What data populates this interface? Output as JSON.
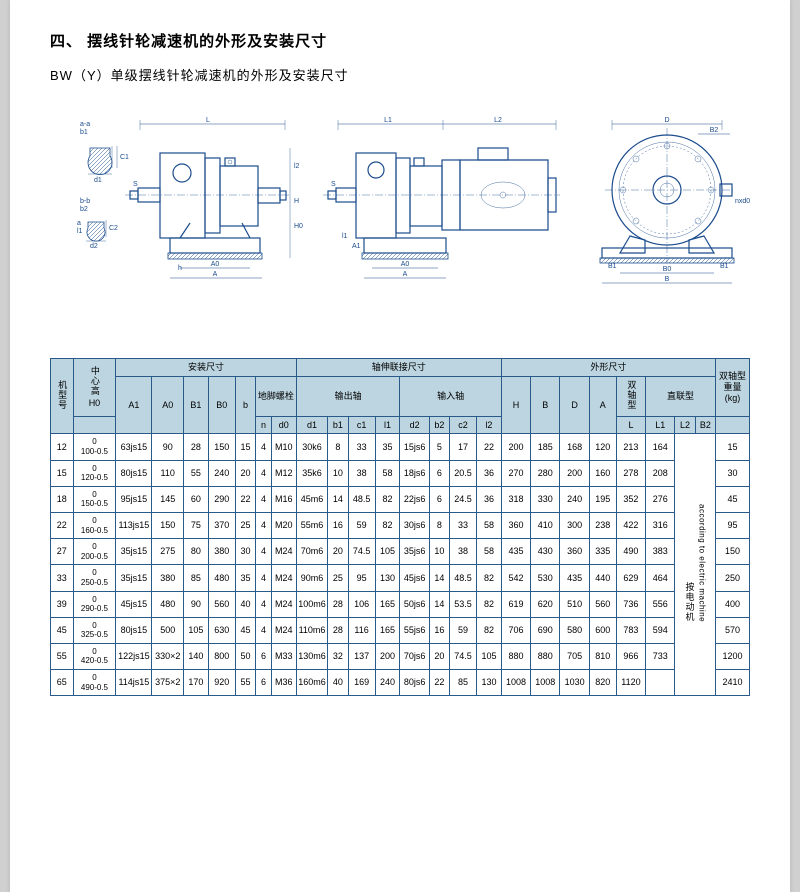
{
  "header": {
    "section_title": "四、  摆线针轮减速机的外形及安装尺寸",
    "subtitle": "BW（Y）单级摆线针轮减速机的外形及安装尺寸"
  },
  "diagram": {
    "small_labels": {
      "aa": "a-a",
      "bb": "b-b",
      "b1": "b1",
      "d1": "d1",
      "C1": "C1",
      "b2": "b2",
      "d2": "d2",
      "C2": "C2",
      "a": "a",
      "s_": "S",
      "I1": "l1",
      "h": "h",
      "H0": "H0",
      "I2": "l2",
      "H": "H"
    },
    "main": {
      "L": "L",
      "A0": "A0",
      "A": "A",
      "S": "S",
      "L1": "L1",
      "L2": "L2",
      "A0_2": "A0",
      "A_2": "A",
      "A1": "A1",
      "I1": "l1",
      "D": "D",
      "B2": "B2",
      "B1": "B1",
      "B0": "B0",
      "B": "B",
      "nxd0": "nxd0"
    }
  },
  "table": {
    "groups": {
      "install": "安装尺寸",
      "shaft": "轴伸联接尺寸",
      "outline": "外形尺寸"
    },
    "headers": {
      "model": "机型号",
      "center_h": "中心高",
      "H0": "H0",
      "A1": "A1",
      "A0": "A0",
      "B1": "B1",
      "B0": "B0",
      "b": "b",
      "anchor": "地脚螺栓",
      "output": "输出轴",
      "input": "输入轴",
      "n": "n",
      "d0": "d0",
      "d1": "d1",
      "b1": "b1",
      "c1": "c1",
      "l1": "l1",
      "d2": "d2",
      "b2": "b2",
      "c2": "c2",
      "l2": "l2",
      "H": "H",
      "B": "B",
      "D": "D",
      "A": "A",
      "dual": "双轴型",
      "direct": "直联型",
      "L": "L",
      "L1": "L1",
      "L2": "L2",
      "B2": "B2",
      "weight": "双轴型重量",
      "kg": "(kg)",
      "note": "按电动机",
      "note_en": "according to electric machine"
    },
    "rows": [
      {
        "m": "12",
        "h0": "0\n100-0.5",
        "a1": "63js15",
        "a0": "90",
        "b1": "28",
        "b0": "150",
        "b": "15",
        "n": "4",
        "d0": "M10",
        "d1": "30k6",
        "b1s": "8",
        "c1": "33",
        "l1": "35",
        "d2": "15js6",
        "b2": "5",
        "c2": "17",
        "l2": "22",
        "H": "200",
        "B": "185",
        "D": "168",
        "A": "120",
        "L": "213",
        "L1": "164",
        "wt": "15"
      },
      {
        "m": "15",
        "h0": "0\n120-0.5",
        "a1": "80js15",
        "a0": "110",
        "b1": "55",
        "b0": "240",
        "b": "20",
        "n": "4",
        "d0": "M12",
        "d1": "35k6",
        "b1s": "10",
        "c1": "38",
        "l1": "58",
        "d2": "18js6",
        "b2": "6",
        "c2": "20.5",
        "l2": "36",
        "H": "270",
        "B": "280",
        "D": "200",
        "A": "160",
        "L": "278",
        "L1": "208",
        "wt": "30"
      },
      {
        "m": "18",
        "h0": "0\n150-0.5",
        "a1": "95js15",
        "a0": "145",
        "b1": "60",
        "b0": "290",
        "b": "22",
        "n": "4",
        "d0": "M16",
        "d1": "45m6",
        "b1s": "14",
        "c1": "48.5",
        "l1": "82",
        "d2": "22js6",
        "b2": "6",
        "c2": "24.5",
        "l2": "36",
        "H": "318",
        "B": "330",
        "D": "240",
        "A": "195",
        "L": "352",
        "L1": "276",
        "wt": "45"
      },
      {
        "m": "22",
        "h0": "0\n160-0.5",
        "a1": "113js15",
        "a0": "150",
        "b1": "75",
        "b0": "370",
        "b": "25",
        "n": "4",
        "d0": "M20",
        "d1": "55m6",
        "b1s": "16",
        "c1": "59",
        "l1": "82",
        "d2": "30js6",
        "b2": "8",
        "c2": "33",
        "l2": "58",
        "H": "360",
        "B": "410",
        "D": "300",
        "A": "238",
        "L": "422",
        "L1": "316",
        "wt": "95"
      },
      {
        "m": "27",
        "h0": "0\n200-0.5",
        "a1": "35js15",
        "a0": "275",
        "b1": "80",
        "b0": "380",
        "b": "30",
        "n": "4",
        "d0": "M24",
        "d1": "70m6",
        "b1s": "20",
        "c1": "74.5",
        "l1": "105",
        "d2": "35js6",
        "b2": "10",
        "c2": "38",
        "l2": "58",
        "H": "435",
        "B": "430",
        "D": "360",
        "A": "335",
        "L": "490",
        "L1": "383",
        "wt": "150"
      },
      {
        "m": "33",
        "h0": "0\n250-0.5",
        "a1": "35js15",
        "a0": "380",
        "b1": "85",
        "b0": "480",
        "b": "35",
        "n": "4",
        "d0": "M24",
        "d1": "90m6",
        "b1s": "25",
        "c1": "95",
        "l1": "130",
        "d2": "45js6",
        "b2": "14",
        "c2": "48.5",
        "l2": "82",
        "H": "542",
        "B": "530",
        "D": "435",
        "A": "440",
        "L": "629",
        "L1": "464",
        "wt": "250"
      },
      {
        "m": "39",
        "h0": "0\n290-0.5",
        "a1": "45js15",
        "a0": "480",
        "b1": "90",
        "b0": "560",
        "b": "40",
        "n": "4",
        "d0": "M24",
        "d1": "100m6",
        "b1s": "28",
        "c1": "106",
        "l1": "165",
        "d2": "50js6",
        "b2": "14",
        "c2": "53.5",
        "l2": "82",
        "H": "619",
        "B": "620",
        "D": "510",
        "A": "560",
        "L": "736",
        "L1": "556",
        "wt": "400"
      },
      {
        "m": "45",
        "h0": "0\n325-0.5",
        "a1": "80js15",
        "a0": "500",
        "b1": "105",
        "b0": "630",
        "b": "45",
        "n": "4",
        "d0": "M24",
        "d1": "110m6",
        "b1s": "28",
        "c1": "116",
        "l1": "165",
        "d2": "55js6",
        "b2": "16",
        "c2": "59",
        "l2": "82",
        "H": "706",
        "B": "690",
        "D": "580",
        "A": "600",
        "L": "783",
        "L1": "594",
        "wt": "570"
      },
      {
        "m": "55",
        "h0": "0\n420-0.5",
        "a1": "122js15",
        "a0": "330×2",
        "b1": "140",
        "b0": "800",
        "b": "50",
        "n": "6",
        "d0": "M33",
        "d1": "130m6",
        "b1s": "32",
        "c1": "137",
        "l1": "200",
        "d2": "70js6",
        "b2": "20",
        "c2": "74.5",
        "l2": "105",
        "H": "880",
        "B": "880",
        "D": "705",
        "A": "810",
        "L": "966",
        "L1": "733",
        "wt": "1200"
      },
      {
        "m": "65",
        "h0": "0\n490-0.5",
        "a1": "114js15",
        "a0": "375×2",
        "b1": "170",
        "b0": "920",
        "b": "55",
        "n": "6",
        "d0": "M36",
        "d1": "160m6",
        "b1s": "40",
        "c1": "169",
        "l1": "240",
        "d2": "80js6",
        "b2": "22",
        "c2": "85",
        "l2": "130",
        "H": "1008",
        "B": "1008",
        "D": "1030",
        "A": "820",
        "L": "1120",
        "L1": "",
        "wt": "2410"
      }
    ]
  }
}
